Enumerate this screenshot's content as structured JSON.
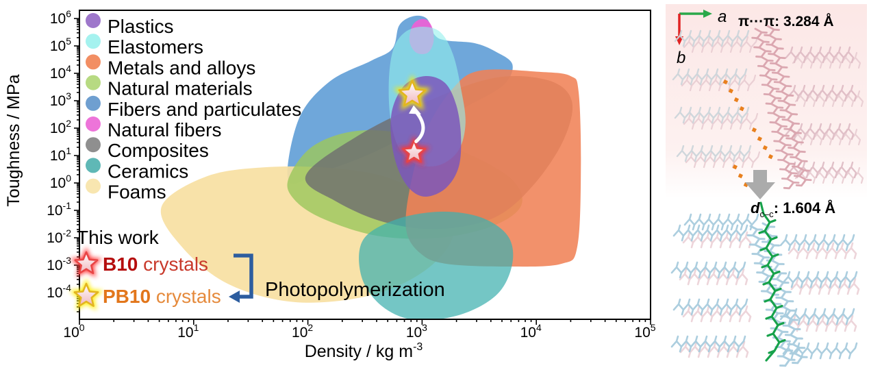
{
  "chart_data": {
    "type": "scatter",
    "title": "",
    "xlabel": {
      "prefix": "Density / kg m",
      "sup": "-3"
    },
    "ylabel": "Toughness / MPa",
    "x_scale": "log",
    "y_scale": "log",
    "xlim": [
      1,
      100000
    ],
    "ylim": [
      0.0001,
      1000000
    ],
    "x_tick_exponents": [
      0,
      1,
      2,
      3,
      4,
      5
    ],
    "y_tick_exponents": [
      6,
      5,
      4,
      3,
      2,
      1,
      0,
      -1,
      -2,
      -3,
      -4
    ],
    "grid": false,
    "legend_position": "upper-left-inside",
    "legend": [
      {
        "label": "Plastics",
        "color": "#9e77cb"
      },
      {
        "label": "Elastomers",
        "color": "#a5f2ef"
      },
      {
        "label": "Metals and alloys",
        "color": "#f28e63"
      },
      {
        "label": "Natural materials",
        "color": "#b7da82"
      },
      {
        "label": "Fibers and particulates",
        "color": "#6f9fd0"
      },
      {
        "label": "Natural fibers",
        "color": "#ed74d9"
      },
      {
        "label": "Composites",
        "color": "#8f8f8f"
      },
      {
        "label": "Ceramics",
        "color": "#5fb8b6"
      },
      {
        "label": "Foams",
        "color": "#f8e6b0"
      }
    ],
    "regions": [
      {
        "name": "Fibers and particulates",
        "color": "#5b9bd5",
        "opacity": 0.88,
        "outline": [
          [
            1.83,
            0.08
          ],
          [
            1.92,
            2.33
          ],
          [
            2.19,
            3.7
          ],
          [
            2.55,
            4.45
          ],
          [
            2.74,
            4.9
          ],
          [
            2.8,
            5.75
          ],
          [
            2.92,
            6.08
          ],
          [
            3.04,
            6.0
          ],
          [
            3.11,
            5.4
          ],
          [
            3.21,
            5.2
          ],
          [
            3.46,
            5.1
          ],
          [
            3.64,
            4.8
          ],
          [
            3.79,
            4.33
          ],
          [
            3.72,
            3.6
          ],
          [
            3.44,
            2.9
          ],
          [
            3.02,
            2.05
          ],
          [
            2.54,
            1.05
          ],
          [
            2.12,
            0.4
          ]
        ]
      },
      {
        "name": "Foams",
        "color": "#f7dfa2",
        "opacity": 0.92,
        "outline": [
          [
            0.72,
            -0.85
          ],
          [
            1.12,
            0.25
          ],
          [
            1.66,
            0.58
          ],
          [
            2.25,
            0.53
          ],
          [
            2.73,
            0.15
          ],
          [
            3.15,
            -0.8
          ],
          [
            3.27,
            -1.93
          ],
          [
            3.03,
            -3.18
          ],
          [
            2.55,
            -4.1
          ],
          [
            1.89,
            -4.35
          ],
          [
            1.3,
            -3.68
          ],
          [
            0.89,
            -2.3
          ]
        ]
      },
      {
        "name": "Natural materials",
        "color": "#9cc75d",
        "opacity": 0.82,
        "outline": [
          [
            1.83,
            0.15
          ],
          [
            2.04,
            1.33
          ],
          [
            2.43,
            1.9
          ],
          [
            2.91,
            1.75
          ],
          [
            3.39,
            1.08
          ],
          [
            3.78,
            0.15
          ],
          [
            3.87,
            -0.8
          ],
          [
            3.63,
            -1.55
          ],
          [
            3.15,
            -2.0
          ],
          [
            2.61,
            -1.93
          ],
          [
            2.13,
            -1.3
          ],
          [
            1.88,
            -0.6
          ]
        ]
      },
      {
        "name": "Composites",
        "color": "#6f6f6f",
        "opacity": 0.82,
        "outline": [
          [
            1.98,
            0.25
          ],
          [
            2.43,
            1.7
          ],
          [
            3.03,
            2.95
          ],
          [
            3.63,
            3.83
          ],
          [
            4.1,
            3.75
          ],
          [
            4.31,
            3.0
          ],
          [
            4.24,
            1.58
          ],
          [
            3.98,
            -0.05
          ],
          [
            3.64,
            -1.25
          ],
          [
            3.15,
            -1.68
          ],
          [
            2.67,
            -1.43
          ],
          [
            2.25,
            -0.68
          ]
        ]
      },
      {
        "name": "Metals and alloys",
        "color": "#f08257",
        "opacity": 0.88,
        "outline": [
          [
            3.51,
            4.1
          ],
          [
            4.04,
            4.05
          ],
          [
            4.3,
            3.9
          ],
          [
            4.37,
            3.33
          ],
          [
            4.39,
            0.7
          ],
          [
            4.36,
            -2.3
          ],
          [
            4.22,
            -2.95
          ],
          [
            3.75,
            -3.05
          ],
          [
            3.21,
            -2.95
          ],
          [
            2.98,
            -2.55
          ],
          [
            2.86,
            -1.68
          ],
          [
            2.9,
            -0.05
          ],
          [
            3.04,
            1.95
          ],
          [
            3.27,
            3.45
          ]
        ]
      },
      {
        "name": "Ceramics",
        "color": "#3fb0ae",
        "opacity": 0.72,
        "outline": [
          [
            2.48,
            -2.1
          ],
          [
            2.76,
            -1.35
          ],
          [
            3.15,
            -1.05
          ],
          [
            3.51,
            -1.25
          ],
          [
            3.75,
            -1.93
          ],
          [
            3.79,
            -2.93
          ],
          [
            3.66,
            -4.05
          ],
          [
            3.34,
            -4.8
          ],
          [
            2.94,
            -5.0
          ],
          [
            2.65,
            -4.5
          ],
          [
            2.47,
            -3.43
          ]
        ]
      },
      {
        "name": "Natural fibers",
        "color": "#f05fd5",
        "opacity": 0.9,
        "outline": [
          [
            2.89,
            5.15
          ],
          [
            2.91,
            5.7
          ],
          [
            2.97,
            5.95
          ],
          [
            3.04,
            5.95
          ],
          [
            3.09,
            5.65
          ],
          [
            3.1,
            5.15
          ],
          [
            3.05,
            4.75
          ],
          [
            2.95,
            4.75
          ]
        ]
      },
      {
        "name": "Elastomers",
        "color": "#93f0ec",
        "opacity": 0.6,
        "outline": [
          [
            2.85,
            5.5
          ],
          [
            3.0,
            5.7
          ],
          [
            3.16,
            5.5
          ],
          [
            3.27,
            4.7
          ],
          [
            3.34,
            3.45
          ],
          [
            3.38,
            2.2
          ],
          [
            3.32,
            1.2
          ],
          [
            3.15,
            0.65
          ],
          [
            2.94,
            0.7
          ],
          [
            2.79,
            1.33
          ],
          [
            2.72,
            2.45
          ],
          [
            2.71,
            3.83
          ],
          [
            2.75,
            4.9
          ]
        ]
      },
      {
        "name": "Plastics",
        "color": "#7b57bb",
        "opacity": 0.85,
        "outline": [
          [
            2.85,
            3.58
          ],
          [
            3.03,
            3.9
          ],
          [
            3.2,
            3.65
          ],
          [
            3.3,
            2.83
          ],
          [
            3.34,
            1.7
          ],
          [
            3.32,
            0.58
          ],
          [
            3.21,
            -0.18
          ],
          [
            3.04,
            -0.5
          ],
          [
            2.9,
            -0.25
          ],
          [
            2.79,
            0.5
          ],
          [
            2.73,
            1.58
          ],
          [
            2.74,
            2.7
          ]
        ]
      }
    ],
    "points": [
      {
        "label": "B10 crystals",
        "density_kg_m3": 850,
        "toughness_MPa": 13,
        "marker": "star",
        "glow_color": "#ff3333",
        "outline_color": "#e84545",
        "size": 17
      },
      {
        "label": "PB10 crystals",
        "density_kg_m3": 820,
        "toughness_MPa": 1700,
        "marker": "star",
        "glow_color": "#ffee00",
        "outline_color": "#e3b520",
        "size": 20
      }
    ],
    "transition_arrow": {
      "from": "B10 crystals",
      "to": "PB10 crystals",
      "color": "#ffffff"
    },
    "annotation": {
      "text": "Photopolymerization",
      "color": "#7b4caf"
    }
  },
  "this_work": {
    "heading": "This work",
    "entries": [
      {
        "bold": "B10",
        "rest": " crystals",
        "bold_color": "#b50d0d",
        "rest_color": "#c8392b",
        "star_glow": "#ff3333",
        "star_outline": "#e84545"
      },
      {
        "bold": "PB10",
        "rest": " crystals",
        "bold_color": "#e2761b",
        "rest_color": "#e58a3c",
        "star_glow": "#ffee00",
        "star_outline": "#e3b520"
      }
    ],
    "link_arrow_color": "#2d5d9f"
  },
  "structure_panel": {
    "axis_a": "a",
    "axis_b": "b",
    "axis_a_color": "#2aa84a",
    "axis_b_color": "#e02424",
    "pi_stack_label": "π···π: 3.284 Å",
    "pi_stack_color": "#e8801e",
    "bond_label": {
      "d": "d",
      "sub": "c–c",
      "rest": ": 1.604 Å"
    },
    "bond_color": "#17a24b",
    "panel_tint": "#fce7e6",
    "transform_arrow_color": "#ababab"
  }
}
